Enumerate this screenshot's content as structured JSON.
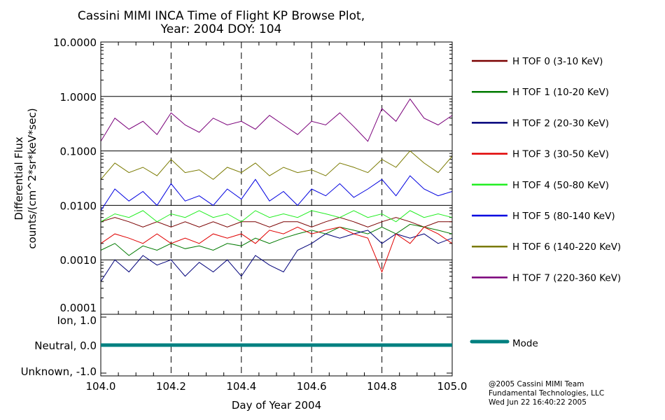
{
  "chart_data": {
    "type": "line",
    "title": "Cassini MIMI INCA Time of Flight KP Browse Plot,",
    "subtitle": "Year: 2004 DOY: 104",
    "xlabel": "Day of Year 2004",
    "ylabel": [
      "Differential Flux",
      "counts/(cm^2*sr*keV*sec)"
    ],
    "xlim": [
      104.0,
      105.0
    ],
    "ylim": [
      0.0001,
      10.0
    ],
    "yscale": "log",
    "xticks": [
      "104.0",
      "104.2",
      "104.4",
      "104.6",
      "104.8",
      "105.0"
    ],
    "yticks": [
      "10.0000",
      "1.0000",
      "0.1000",
      "0.0100",
      "0.0010",
      "0.0001"
    ],
    "legend_placement": "right",
    "x": [
      104.0,
      104.04,
      104.08,
      104.12,
      104.16,
      104.2,
      104.24,
      104.28,
      104.32,
      104.36,
      104.4,
      104.44,
      104.48,
      104.52,
      104.56,
      104.6,
      104.64,
      104.68,
      104.72,
      104.76,
      104.8,
      104.84,
      104.88,
      104.92,
      104.96,
      105.0
    ],
    "series": [
      {
        "name": "H TOF 0 (3-10 KeV)",
        "color": "#7a0000",
        "values": [
          0.005,
          0.006,
          0.005,
          0.004,
          0.005,
          0.004,
          0.005,
          0.004,
          0.005,
          0.004,
          0.005,
          0.005,
          0.004,
          0.005,
          0.005,
          0.004,
          0.005,
          0.006,
          0.005,
          0.004,
          0.005,
          0.006,
          0.005,
          0.004,
          0.005,
          0.005
        ]
      },
      {
        "name": "H TOF 1 (10-20 KeV)",
        "color": "#007a00",
        "values": [
          0.0015,
          0.002,
          0.0012,
          0.0018,
          0.0015,
          0.002,
          0.0016,
          0.0018,
          0.0015,
          0.002,
          0.0018,
          0.0025,
          0.002,
          0.0025,
          0.003,
          0.0035,
          0.003,
          0.004,
          0.0035,
          0.003,
          0.004,
          0.003,
          0.0045,
          0.004,
          0.0035,
          0.003
        ]
      },
      {
        "name": "H TOF 2 (20-30 KeV)",
        "color": "#00007a",
        "values": [
          0.0004,
          0.001,
          0.0006,
          0.0012,
          0.0008,
          0.001,
          0.0005,
          0.0009,
          0.0006,
          0.001,
          0.0005,
          0.0012,
          0.0008,
          0.0006,
          0.0015,
          0.002,
          0.003,
          0.0025,
          0.003,
          0.0035,
          0.002,
          0.003,
          0.0025,
          0.003,
          0.002,
          0.0025
        ]
      },
      {
        "name": "H TOF 3 (30-50 KeV)",
        "color": "#e00000",
        "values": [
          0.002,
          0.003,
          0.0025,
          0.002,
          0.003,
          0.002,
          0.0025,
          0.002,
          0.003,
          0.0025,
          0.003,
          0.002,
          0.0035,
          0.003,
          0.004,
          0.003,
          0.0035,
          0.004,
          0.003,
          0.0025,
          0.0006,
          0.003,
          0.002,
          0.004,
          0.003,
          0.002
        ]
      },
      {
        "name": "H TOF 4 (50-80 KeV)",
        "color": "#22ee22",
        "values": [
          0.005,
          0.007,
          0.006,
          0.008,
          0.005,
          0.007,
          0.006,
          0.008,
          0.006,
          0.007,
          0.005,
          0.008,
          0.006,
          0.007,
          0.006,
          0.008,
          0.007,
          0.006,
          0.008,
          0.006,
          0.007,
          0.005,
          0.008,
          0.006,
          0.007,
          0.006
        ]
      },
      {
        "name": "H TOF 5 (80-140 KeV)",
        "color": "#0000e0",
        "values": [
          0.008,
          0.02,
          0.012,
          0.018,
          0.01,
          0.025,
          0.012,
          0.015,
          0.01,
          0.02,
          0.013,
          0.03,
          0.012,
          0.018,
          0.01,
          0.02,
          0.015,
          0.025,
          0.014,
          0.02,
          0.03,
          0.015,
          0.035,
          0.02,
          0.015,
          0.018
        ]
      },
      {
        "name": "H TOF 6 (140-220 KeV)",
        "color": "#7a7a00",
        "values": [
          0.03,
          0.06,
          0.04,
          0.05,
          0.035,
          0.07,
          0.04,
          0.045,
          0.03,
          0.05,
          0.04,
          0.06,
          0.035,
          0.05,
          0.04,
          0.045,
          0.035,
          0.06,
          0.05,
          0.04,
          0.07,
          0.05,
          0.1,
          0.06,
          0.04,
          0.08
        ]
      },
      {
        "name": "H TOF 7 (220-360 KeV)",
        "color": "#7a007a",
        "values": [
          0.15,
          0.4,
          0.25,
          0.35,
          0.2,
          0.5,
          0.3,
          0.22,
          0.4,
          0.3,
          0.35,
          0.25,
          0.45,
          0.3,
          0.2,
          0.35,
          0.3,
          0.5,
          0.28,
          0.15,
          0.6,
          0.35,
          0.9,
          0.4,
          0.3,
          0.45
        ]
      }
    ],
    "mode_panel": {
      "yticks": [
        "Ion, 1.0",
        "Neutral, 0.0",
        "Unknown, -1.0"
      ],
      "ylim": [
        -1.0,
        1.0
      ],
      "series": {
        "name": "Mode",
        "color": "#008080",
        "value": 0.0
      }
    }
  },
  "footer": {
    "line1": "@2005 Cassini MIMI Team",
    "line2": "Fundamental Technologies, LLC",
    "line3": "Wed Jun 22 16:40:22 2005"
  }
}
